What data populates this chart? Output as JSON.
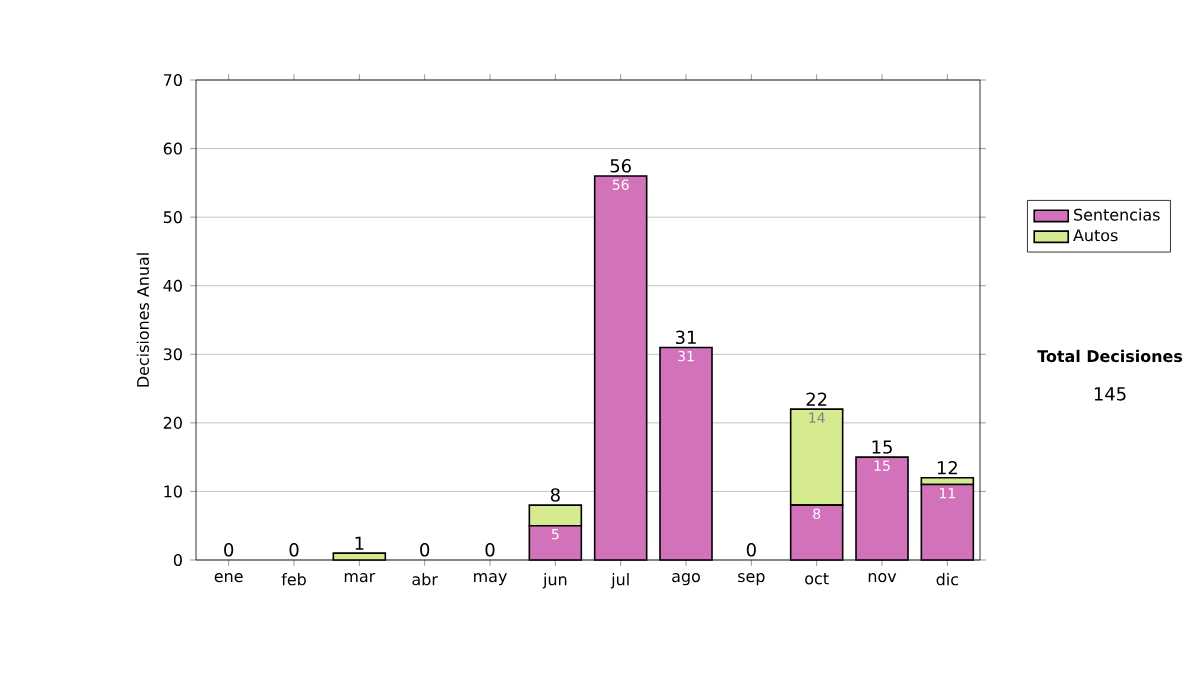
{
  "chart_data": {
    "type": "bar",
    "stacked": true,
    "ylabel": "Decisiones Anual",
    "categories": [
      "ene",
      "feb",
      "mar",
      "abr",
      "may",
      "jun",
      "jul",
      "ago",
      "sep",
      "oct",
      "nov",
      "dic"
    ],
    "series": [
      {
        "name": "Sentencias",
        "color": "#d272bb",
        "values": [
          0,
          0,
          0,
          0,
          0,
          5,
          56,
          31,
          0,
          8,
          15,
          11
        ],
        "value_labels": [
          null,
          null,
          null,
          null,
          null,
          "5",
          "56",
          "31",
          null,
          "8",
          "15",
          "11"
        ]
      },
      {
        "name": "Autos",
        "color": "#d6ea90",
        "values": [
          0,
          0,
          1,
          0,
          0,
          3,
          0,
          0,
          0,
          14,
          0,
          1
        ],
        "value_labels": [
          null,
          null,
          null,
          null,
          null,
          null,
          null,
          null,
          null,
          "14",
          null,
          null
        ]
      }
    ],
    "totals": [
      "0",
      "0",
      "1",
      "0",
      "0",
      "8",
      "56",
      "31",
      "0",
      "22",
      "15",
      "12"
    ],
    "ylim": [
      0,
      70
    ],
    "yticks": [
      0,
      10,
      20,
      30,
      40,
      50,
      60,
      70
    ],
    "grid": "y",
    "legend": "right",
    "annotations": [
      "Total Decisiones",
      "145"
    ]
  }
}
